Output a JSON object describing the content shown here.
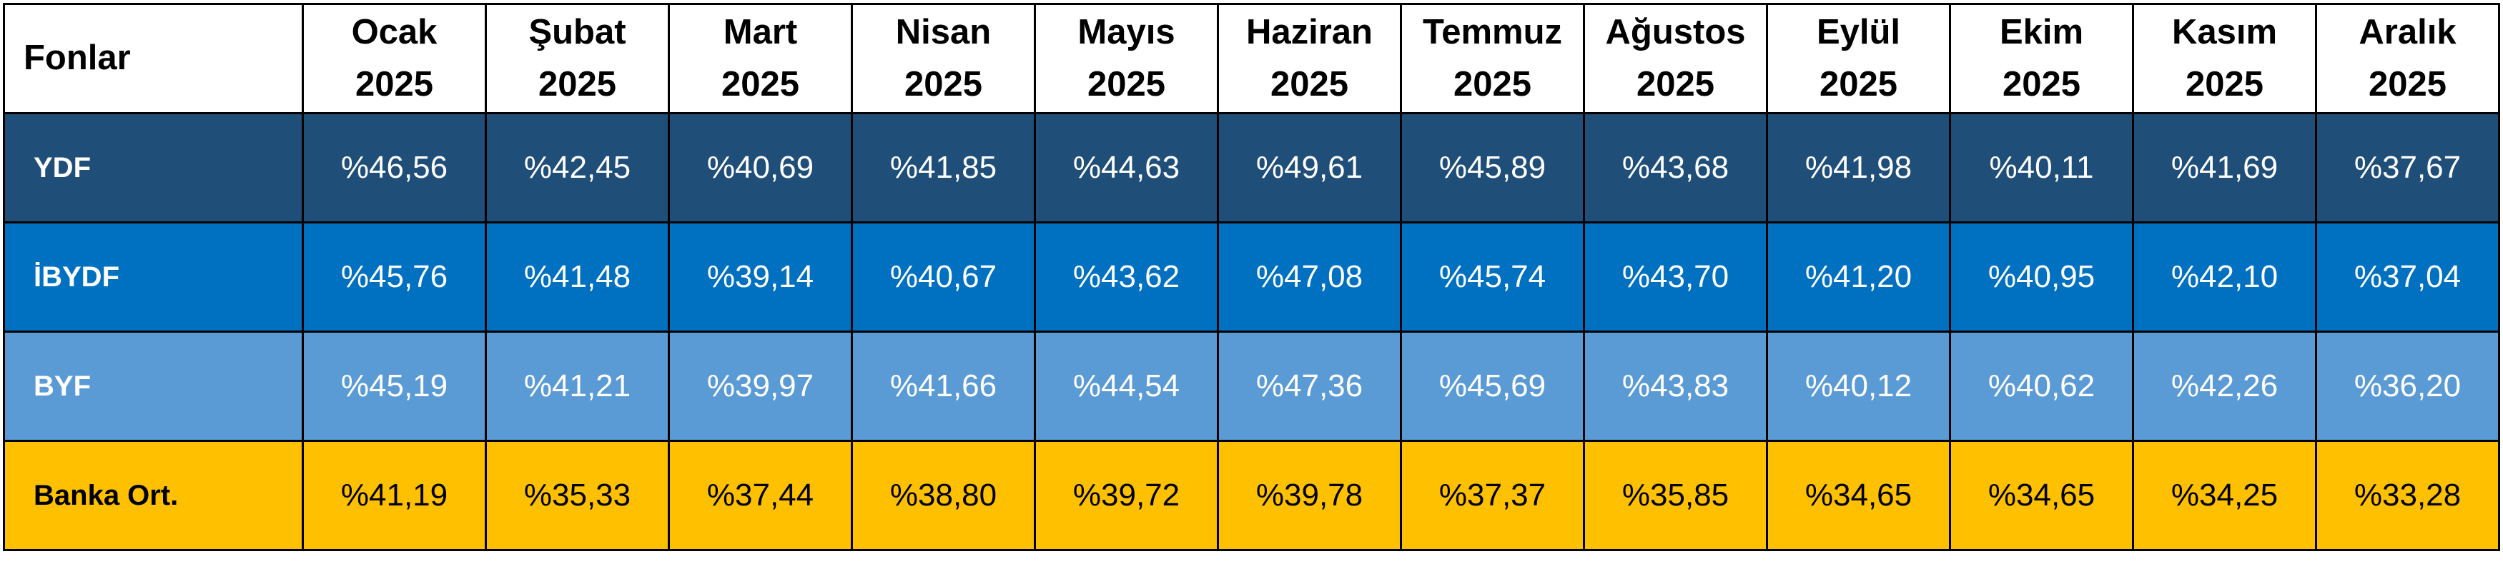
{
  "table": {
    "corner_label": "Fonlar",
    "months": [
      {
        "month": "Ocak",
        "year": "2025"
      },
      {
        "month": "Şubat",
        "year": "2025"
      },
      {
        "month": "Mart",
        "year": "2025"
      },
      {
        "month": "Nisan",
        "year": "2025"
      },
      {
        "month": "Mayıs",
        "year": "2025"
      },
      {
        "month": "Haziran",
        "year": "2025"
      },
      {
        "month": "Temmuz",
        "year": "2025"
      },
      {
        "month": "Ağustos",
        "year": "2025"
      },
      {
        "month": "Eylül",
        "year": "2025"
      },
      {
        "month": "Ekim",
        "year": "2025"
      },
      {
        "month": "Kasım",
        "year": "2025"
      },
      {
        "month": "Aralık",
        "year": "2025"
      }
    ],
    "rows": [
      {
        "name": "YDF",
        "color": "#1f4e79",
        "values": [
          "%46,56",
          "%42,45",
          "%40,69",
          "%41,85",
          "%44,63",
          "%49,61",
          "%45,89",
          "%43,68",
          "%41,98",
          "%40,11",
          "%41,69",
          "%37,67"
        ]
      },
      {
        "name": "İBYDF",
        "color": "#0070c0",
        "values": [
          "%45,76",
          "%41,48",
          "%39,14",
          "%40,67",
          "%43,62",
          "%47,08",
          "%45,74",
          "%43,70",
          "%41,20",
          "%40,95",
          "%42,10",
          "%37,04"
        ]
      },
      {
        "name": "BYF",
        "color": "#5b9bd5",
        "values": [
          "%45,19",
          "%41,21",
          "%39,97",
          "%41,66",
          "%44,54",
          "%47,36",
          "%45,69",
          "%43,83",
          "%40,12",
          "%40,62",
          "%42,26",
          "%36,20"
        ]
      },
      {
        "name": "Banka Ort.",
        "color": "#ffc000",
        "values": [
          "%41,19",
          "%35,33",
          "%37,44",
          "%38,80",
          "%39,72",
          "%39,78",
          "%37,37",
          "%35,85",
          "%34,65",
          "%34,65",
          "%34,25",
          "%33,28"
        ]
      }
    ]
  }
}
